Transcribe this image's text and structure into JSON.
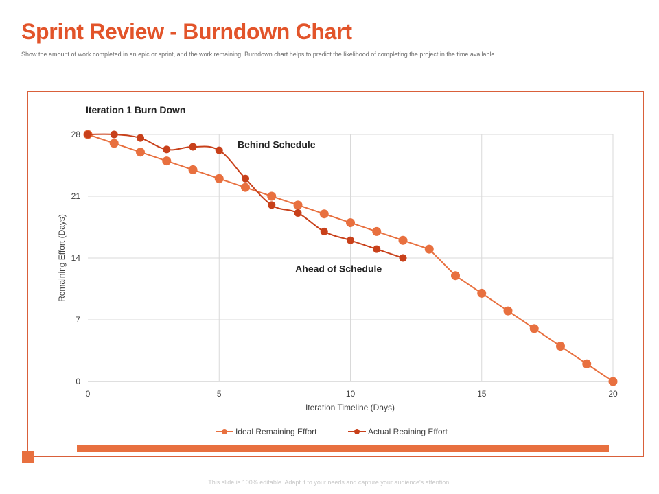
{
  "slide": {
    "title": "Sprint Review - Burndown Chart",
    "subtitle": "Show the amount of work completed in an epic or sprint, and the work remaining. Burndown chart helps to predict the likelihood of completing the project in the time available.",
    "footer": "This slide is 100% editable. Adapt it to your needs and capture your audience's attention.",
    "accent_color": "#E8703F",
    "title_color": "#E2542A"
  },
  "chart_data": {
    "type": "line",
    "title": "Iteration 1 Burn Down",
    "xlabel": "Iteration Timeline (Days)",
    "ylabel": "Remaining Effort (Days)",
    "xlim": [
      0,
      20
    ],
    "ylim": [
      0,
      28
    ],
    "xticks": [
      0,
      5,
      10,
      15,
      20
    ],
    "yticks": [
      0,
      7,
      14,
      21,
      28
    ],
    "grid": true,
    "legend_position": "bottom",
    "series": [
      {
        "name": "Ideal Remaining Effort",
        "color": "#E8703F",
        "smooth": false,
        "x": [
          0,
          1,
          2,
          3,
          4,
          5,
          6,
          7,
          8,
          9,
          10,
          11,
          12,
          13,
          14,
          15,
          16,
          17,
          18,
          19,
          20
        ],
        "y": [
          28,
          27,
          26,
          25,
          24,
          23,
          22,
          21,
          20,
          19,
          18,
          17,
          16,
          15,
          12,
          10,
          8,
          6,
          4,
          2,
          0
        ]
      },
      {
        "name": "Actual Reaining Effort",
        "color": "#C8401A",
        "smooth": true,
        "x": [
          0,
          1,
          2,
          3,
          4,
          5,
          6,
          7,
          8,
          9,
          10,
          11,
          12
        ],
        "y": [
          28,
          28,
          27.6,
          26.3,
          26.6,
          26.2,
          23,
          20,
          19.1,
          17,
          16,
          15,
          14
        ]
      }
    ],
    "annotations": [
      {
        "text": "Behind Schedule",
        "x": 5.7,
        "y": 26.5
      },
      {
        "text": "Ahead of Schedule",
        "x": 7.9,
        "y": 12.4
      }
    ]
  }
}
